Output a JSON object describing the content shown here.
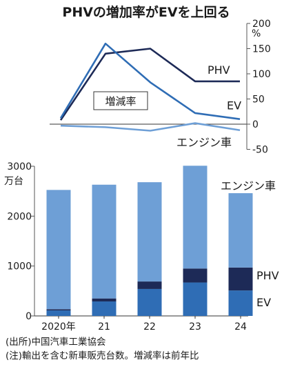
{
  "title": "PHVの増加率がEVを上回る",
  "colors": {
    "phv": "#1d2a57",
    "ev": "#2f6db5",
    "engine": "#6e9fd6",
    "axis": "#555555"
  },
  "chart_data": [
    {
      "type": "line",
      "label": "増減率",
      "ylabel": "%",
      "x": [
        "2020年",
        "21",
        "22",
        "23",
        "24"
      ],
      "ylim": [
        -50,
        200
      ],
      "yticks": [
        -50,
        0,
        50,
        100,
        150,
        200
      ],
      "series": [
        {
          "name": "PHV",
          "values": [
            8,
            140,
            150,
            85,
            85
          ]
        },
        {
          "name": "EV",
          "values": [
            12,
            160,
            83,
            22,
            10
          ]
        },
        {
          "name": "エンジン車",
          "values": [
            -3,
            -6,
            -13,
            2,
            -12
          ]
        }
      ]
    },
    {
      "type": "bar",
      "stacked": true,
      "ylabel": "万台",
      "categories": [
        "2020年",
        "21",
        "22",
        "23",
        "24"
      ],
      "ylim": [
        0,
        3000
      ],
      "yticks": [
        0,
        1000,
        2000,
        3000
      ],
      "series": [
        {
          "name": "EV",
          "values": [
            110,
            290,
            540,
            670,
            510
          ]
        },
        {
          "name": "PHV",
          "values": [
            25,
            60,
            150,
            280,
            460
          ]
        },
        {
          "name": "エンジン車",
          "values": [
            2390,
            2280,
            1990,
            2060,
            1490
          ]
        }
      ]
    }
  ],
  "notes": [
    "(出所)中国汽車工業協会",
    "(注)輸出を含む新車販売台数。増減率は前年比"
  ]
}
